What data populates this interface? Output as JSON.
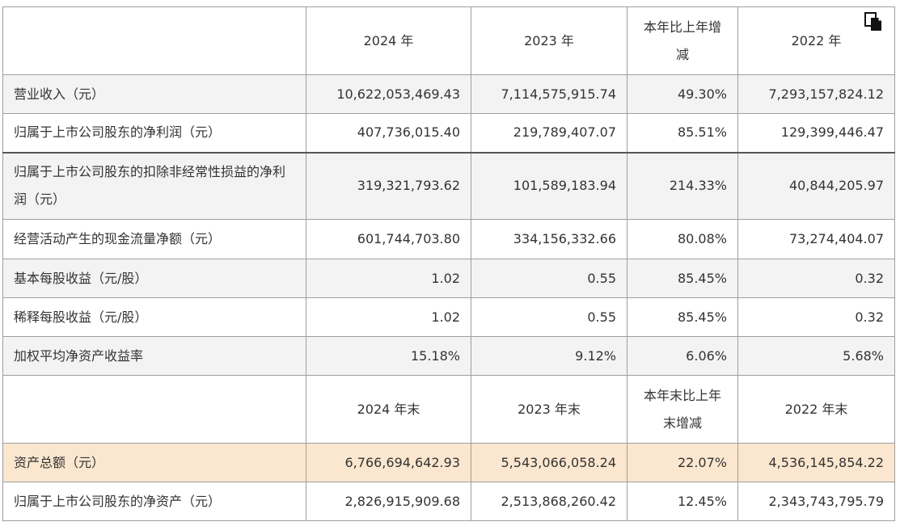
{
  "icon": "copy-icon",
  "header1": {
    "col1": "2024 年",
    "col2": "2023 年",
    "col3": "本年比上年增减",
    "col4": "2022 年"
  },
  "rows1": [
    {
      "label": "营业收入（元）",
      "v2024": "10,622,053,469.43",
      "v2023": "7,114,575,915.74",
      "change": "49.30%",
      "v2022": "7,293,157,824.12"
    },
    {
      "label": "归属于上市公司股东的净利润（元）",
      "v2024": "407,736,015.40",
      "v2023": "219,789,407.07",
      "change": "85.51%",
      "v2022": "129,399,446.47"
    },
    {
      "label": "归属于上市公司股东的扣除非经常性损益的净利润（元）",
      "v2024": "319,321,793.62",
      "v2023": "101,589,183.94",
      "change": "214.33%",
      "v2022": "40,844,205.97"
    },
    {
      "label": "经营活动产生的现金流量净额（元）",
      "v2024": "601,744,703.80",
      "v2023": "334,156,332.66",
      "change": "80.08%",
      "v2022": "73,274,404.07"
    },
    {
      "label": "基本每股收益（元/股）",
      "v2024": "1.02",
      "v2023": "0.55",
      "change": "85.45%",
      "v2022": "0.32"
    },
    {
      "label": "稀释每股收益（元/股）",
      "v2024": "1.02",
      "v2023": "0.55",
      "change": "85.45%",
      "v2022": "0.32"
    },
    {
      "label": "加权平均净资产收益率",
      "v2024": "15.18%",
      "v2023": "9.12%",
      "change": "6.06%",
      "v2022": "5.68%"
    }
  ],
  "header2": {
    "col1": "2024 年末",
    "col2": "2023 年末",
    "col3": "本年末比上年末增减",
    "col4": "2022 年末"
  },
  "rows2": [
    {
      "label": "资产总额（元）",
      "v2024": "6,766,694,642.93",
      "v2023": "5,543,066,058.24",
      "change": "22.07%",
      "v2022": "4,536,145,854.22"
    },
    {
      "label": "归属于上市公司股东的净资产（元）",
      "v2024": "2,826,915,909.68",
      "v2023": "2,513,868,260.42",
      "change": "12.45%",
      "v2022": "2,343,743,795.79"
    }
  ]
}
